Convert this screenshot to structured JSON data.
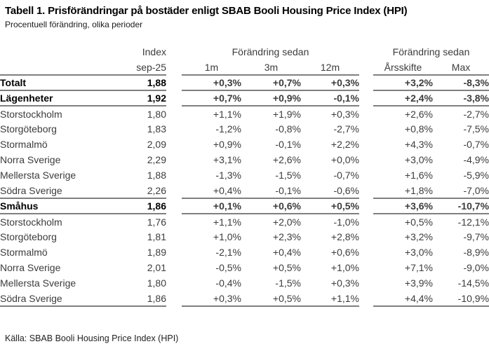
{
  "header": {
    "title": "Tabell 1. Prisförändringar på bostäder enligt SBAB Booli Housing Price Index (HPI)",
    "subtitle": "Procentuell förändring, olika perioder"
  },
  "footer": {
    "source": "Källa: SBAB Booli Housing Price Index (HPI)"
  },
  "colors": {
    "positive": "#2d7327",
    "negative": "#d6411c",
    "gridline": "#7f7f7f"
  },
  "table": {
    "headers": {
      "index_label": "Index",
      "index_period": "sep-25",
      "change_since": "Förändring sedan",
      "m1": "1m",
      "m3": "3m",
      "m12": "12m",
      "ytd": "Årsskifte",
      "max": "Max"
    }
  },
  "chart_data": {
    "type": "table",
    "title": "Tabell 1. Prisförändringar på bostäder enligt SBAB Booli Housing Price Index (HPI)",
    "subtitle": "Procentuell förändring, olika perioder",
    "columns": [
      "",
      "Index sep-25",
      "1m",
      "3m",
      "12m",
      "Årsskifte",
      "Max"
    ],
    "column_groups": [
      "Förändring sedan (1m, 3m, 12m)",
      "Förändring sedan (Årsskifte, Max)"
    ],
    "rows": [
      {
        "label": "Totalt",
        "emphasis": true,
        "divider_after": true,
        "index": "1,88",
        "changes": [
          "+0,3%",
          "+0,7%",
          "+0,3%",
          "+3,2%",
          "-8,3%"
        ]
      },
      {
        "label": "Lägenheter",
        "emphasis": true,
        "divider_after": true,
        "index": "1,92",
        "changes": [
          "+0,7%",
          "+0,9%",
          "-0,1%",
          "+2,4%",
          "-3,8%"
        ]
      },
      {
        "label": "Storstockholm",
        "emphasis": false,
        "divider_after": false,
        "index": "1,80",
        "changes": [
          "+1,1%",
          "+1,9%",
          "+0,3%",
          "+2,6%",
          "-2,7%"
        ]
      },
      {
        "label": "Storgöteborg",
        "emphasis": false,
        "divider_after": false,
        "index": "1,83",
        "changes": [
          "-1,2%",
          "-0,8%",
          "-2,7%",
          "+0,8%",
          "-7,5%"
        ]
      },
      {
        "label": "Stormalmö",
        "emphasis": false,
        "divider_after": false,
        "index": "2,09",
        "changes": [
          "+0,9%",
          "-0,1%",
          "+2,2%",
          "+4,3%",
          "-0,7%"
        ]
      },
      {
        "label": "Norra Sverige",
        "emphasis": false,
        "divider_after": false,
        "index": "2,29",
        "changes": [
          "+3,1%",
          "+2,6%",
          "+0,0%",
          "+3,0%",
          "-4,9%"
        ]
      },
      {
        "label": "Mellersta Sverige",
        "emphasis": false,
        "divider_after": false,
        "index": "1,88",
        "changes": [
          "-1,3%",
          "-1,5%",
          "-0,7%",
          "+1,6%",
          "-5,9%"
        ]
      },
      {
        "label": "Södra Sverige",
        "emphasis": false,
        "divider_after": true,
        "index": "2,26",
        "changes": [
          "+0,4%",
          "-0,1%",
          "-0,6%",
          "+1,8%",
          "-7,0%"
        ]
      },
      {
        "label": "Småhus",
        "emphasis": true,
        "divider_after": true,
        "index": "1,86",
        "changes": [
          "+0,1%",
          "+0,6%",
          "+0,5%",
          "+3,6%",
          "-10,7%"
        ]
      },
      {
        "label": "Storstockholm",
        "emphasis": false,
        "divider_after": false,
        "index": "1,76",
        "changes": [
          "+1,1%",
          "+2,0%",
          "-1,0%",
          "+0,5%",
          "-12,1%"
        ]
      },
      {
        "label": "Storgöteborg",
        "emphasis": false,
        "divider_after": false,
        "index": "1,81",
        "changes": [
          "+1,0%",
          "+2,3%",
          "+2,8%",
          "+3,2%",
          "-9,7%"
        ]
      },
      {
        "label": "Stormalmö",
        "emphasis": false,
        "divider_after": false,
        "index": "1,89",
        "changes": [
          "-2,1%",
          "+0,4%",
          "+0,6%",
          "+3,0%",
          "-8,9%"
        ]
      },
      {
        "label": "Norra Sverige",
        "emphasis": false,
        "divider_after": false,
        "index": "2,01",
        "changes": [
          "-0,5%",
          "+0,5%",
          "+1,0%",
          "+7,1%",
          "-9,0%"
        ]
      },
      {
        "label": "Mellersta Sverige",
        "emphasis": false,
        "divider_after": false,
        "index": "1,80",
        "changes": [
          "-0,4%",
          "-1,5%",
          "+0,3%",
          "+3,9%",
          "-14,5%"
        ]
      },
      {
        "label": "Södra Sverige",
        "emphasis": false,
        "divider_after": true,
        "index": "1,86",
        "changes": [
          "+0,3%",
          "+0,5%",
          "+1,1%",
          "+4,4%",
          "-10,9%"
        ]
      }
    ]
  }
}
